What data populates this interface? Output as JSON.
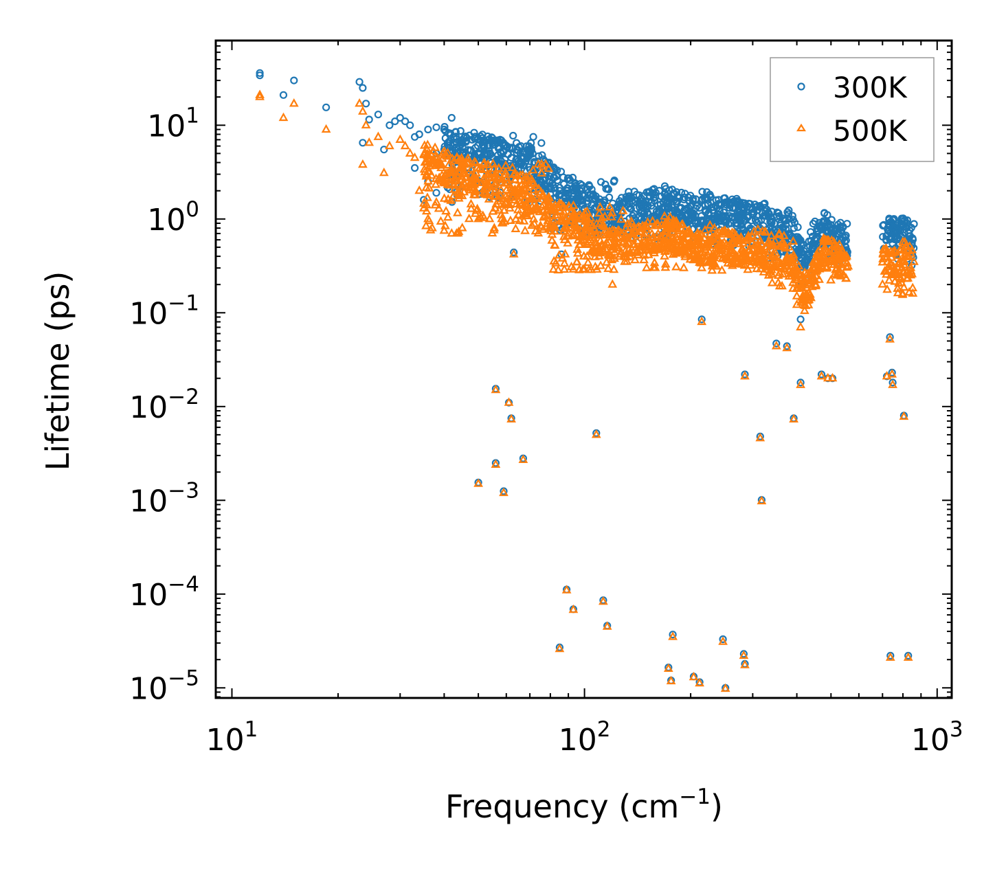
{
  "chart_data": {
    "type": "scatter",
    "title": "",
    "xlabel": "Frequency (cm",
    "xlabel_sup": "−1",
    "xlabel_suffix": ")",
    "ylabel": "Lifetime (ps)",
    "xscale": "log",
    "yscale": "log",
    "xlim": [
      9,
      1100
    ],
    "ylim": [
      7.8e-06,
      80
    ],
    "x_ticks": [
      {
        "value": 10,
        "base": "10",
        "exp": "1"
      },
      {
        "value": 100,
        "base": "10",
        "exp": "2"
      },
      {
        "value": 1000,
        "base": "10",
        "exp": "3"
      }
    ],
    "y_ticks": [
      {
        "value": 10,
        "base": "10",
        "exp": "1"
      },
      {
        "value": 1,
        "base": "10",
        "exp": "0"
      },
      {
        "value": 0.1,
        "base": "10",
        "exp": "−1"
      },
      {
        "value": 0.01,
        "base": "10",
        "exp": "−2"
      },
      {
        "value": 0.001,
        "base": "10",
        "exp": "−3"
      },
      {
        "value": 0.0001,
        "base": "10",
        "exp": "−4"
      },
      {
        "value": 1e-05,
        "base": "10",
        "exp": "−5"
      }
    ],
    "legend_position": "top-right",
    "grid": false,
    "series": [
      {
        "name": "300K",
        "marker": "circle",
        "color": "#1f77b4",
        "trend": [
          [
            12,
            36
          ],
          [
            15,
            28
          ],
          [
            20,
            18
          ],
          [
            25,
            12
          ],
          [
            30,
            9
          ],
          [
            40,
            7
          ],
          [
            50,
            5.5
          ],
          [
            60,
            4.5
          ],
          [
            70,
            4
          ],
          [
            80,
            2.5
          ],
          [
            90,
            2
          ],
          [
            100,
            1.5
          ],
          [
            110,
            1.1
          ],
          [
            130,
            1.2
          ],
          [
            150,
            1.3
          ],
          [
            170,
            1.6
          ],
          [
            200,
            1.1
          ],
          [
            250,
            1.2
          ],
          [
            300,
            1.0
          ],
          [
            350,
            0.8
          ],
          [
            380,
            0.85
          ],
          [
            420,
            0.4
          ],
          [
            480,
            0.8
          ],
          [
            540,
            0.6
          ],
          [
            720,
            0.7
          ],
          [
            800,
            0.7
          ],
          [
            850,
            0.6
          ]
        ],
        "ranges": [
          [
            40,
            80,
            1.5,
            8
          ],
          [
            80,
            130,
            0.7,
            2.6
          ],
          [
            130,
            230,
            0.6,
            2.0
          ],
          [
            230,
            330,
            0.5,
            1.6
          ],
          [
            330,
            400,
            0.35,
            1.2
          ],
          [
            400,
            440,
            0.2,
            0.6
          ],
          [
            440,
            560,
            0.35,
            0.95
          ],
          [
            700,
            860,
            0.3,
            0.9
          ]
        ],
        "points": [
          [
            12,
            36
          ],
          [
            12,
            34
          ],
          [
            14,
            21
          ],
          [
            15,
            30
          ],
          [
            18.5,
            15.5
          ],
          [
            23,
            29
          ],
          [
            23.5,
            25
          ],
          [
            24,
            17
          ],
          [
            24.5,
            11.5
          ],
          [
            23.5,
            6.5
          ],
          [
            26,
            13
          ],
          [
            27,
            5.5
          ],
          [
            28,
            10
          ],
          [
            29,
            11
          ],
          [
            30,
            12
          ],
          [
            31,
            11
          ],
          [
            32,
            10
          ],
          [
            33,
            7.5
          ],
          [
            34,
            8
          ],
          [
            36,
            9
          ],
          [
            38,
            9.5
          ],
          [
            40,
            9
          ],
          [
            42,
            12
          ],
          [
            38,
            5
          ],
          [
            40,
            5.5
          ],
          [
            33,
            3.5
          ],
          [
            36,
            2.5
          ],
          [
            35,
            1.6
          ],
          [
            38,
            1.9
          ],
          [
            45,
            5
          ],
          [
            48,
            7
          ],
          [
            52,
            6
          ],
          [
            55,
            6.5
          ],
          [
            58,
            5
          ],
          [
            62,
            4.5
          ],
          [
            66,
            6
          ],
          [
            70,
            5
          ],
          [
            75,
            2.2
          ],
          [
            80,
            2.5
          ],
          [
            85,
            2
          ],
          [
            90,
            1.8
          ],
          [
            95,
            1.5
          ],
          [
            100,
            1.3
          ],
          [
            105,
            1.1
          ],
          [
            110,
            1.0
          ],
          [
            120,
            1.1
          ],
          [
            130,
            1.5
          ],
          [
            140,
            1.3
          ],
          [
            160,
            1.2
          ],
          [
            170,
            2.1
          ],
          [
            180,
            1.6
          ],
          [
            200,
            1.0
          ],
          [
            220,
            1.4
          ],
          [
            240,
            1.6
          ],
          [
            260,
            1.5
          ],
          [
            280,
            1.3
          ],
          [
            300,
            1.1
          ],
          [
            340,
            1.2
          ],
          [
            360,
            0.9
          ],
          [
            380,
            1.0
          ],
          [
            400,
            0.45
          ],
          [
            420,
            0.35
          ],
          [
            460,
            0.75
          ],
          [
            480,
            0.95
          ],
          [
            520,
            0.5
          ],
          [
            63,
            0.44
          ],
          [
            86,
            0.42
          ],
          [
            215,
            0.085
          ],
          [
            410,
            0.085
          ],
          [
            350,
            0.047
          ],
          [
            375,
            0.044
          ],
          [
            735,
            0.055
          ],
          [
            285,
            0.022
          ],
          [
            410,
            0.018
          ],
          [
            470,
            0.022
          ],
          [
            490,
            0.02
          ],
          [
            505,
            0.02
          ],
          [
            720,
            0.021
          ],
          [
            745,
            0.023
          ],
          [
            748,
            0.018
          ],
          [
            56,
            0.0155
          ],
          [
            61,
            0.011
          ],
          [
            62,
            0.0075
          ],
          [
            392,
            0.0075
          ],
          [
            805,
            0.008
          ],
          [
            108,
            0.0052
          ],
          [
            315,
            0.0048
          ],
          [
            50,
            0.00155
          ],
          [
            56,
            0.0025
          ],
          [
            59,
            0.00125
          ],
          [
            67,
            0.0028
          ],
          [
            318,
            0.00101
          ],
          [
            85,
            2.7e-05
          ],
          [
            89,
            0.000112
          ],
          [
            93,
            6.9e-05
          ],
          [
            113,
            8.6e-05
          ],
          [
            116,
            4.6e-05
          ],
          [
            737,
            2.2e-05
          ],
          [
            828,
            2.2e-05
          ],
          [
            178,
            3.7e-05
          ],
          [
            173,
            1.65e-05
          ],
          [
            176,
            1.2e-05
          ],
          [
            204,
            1.32e-05
          ],
          [
            212,
            1.15e-05
          ],
          [
            247,
            3.3e-05
          ],
          [
            251,
            1e-05
          ],
          [
            283,
            2.3e-05
          ],
          [
            285,
            1.8e-05
          ]
        ]
      },
      {
        "name": "500K",
        "marker": "triangle",
        "color": "#ff7f0e",
        "trend": [
          [
            12,
            21
          ],
          [
            15,
            15
          ],
          [
            20,
            10
          ],
          [
            25,
            7
          ],
          [
            30,
            5.5
          ],
          [
            40,
            3.5
          ],
          [
            50,
            2.8
          ],
          [
            60,
            2.3
          ],
          [
            70,
            1.9
          ],
          [
            80,
            1.1
          ],
          [
            90,
            0.9
          ],
          [
            100,
            0.7
          ],
          [
            120,
            0.55
          ],
          [
            150,
            0.6
          ],
          [
            170,
            0.75
          ],
          [
            200,
            0.5
          ],
          [
            250,
            0.5
          ],
          [
            300,
            0.45
          ],
          [
            350,
            0.35
          ],
          [
            380,
            0.4
          ],
          [
            420,
            0.15
          ],
          [
            480,
            0.45
          ],
          [
            540,
            0.35
          ],
          [
            720,
            0.35
          ],
          [
            800,
            0.4
          ],
          [
            850,
            0.35
          ]
        ],
        "ranges": [
          [
            35,
            80,
            0.7,
            4.0
          ],
          [
            80,
            130,
            0.28,
            1.4
          ],
          [
            130,
            230,
            0.3,
            1.0
          ],
          [
            230,
            330,
            0.28,
            0.8
          ],
          [
            330,
            400,
            0.18,
            0.7
          ],
          [
            400,
            440,
            0.12,
            0.3
          ],
          [
            440,
            560,
            0.22,
            0.5
          ],
          [
            700,
            860,
            0.15,
            0.5
          ]
        ],
        "points": [
          [
            12,
            21
          ],
          [
            12,
            20
          ],
          [
            14,
            12
          ],
          [
            15,
            17
          ],
          [
            18.5,
            9
          ],
          [
            23,
            17
          ],
          [
            23.5,
            14
          ],
          [
            24,
            10
          ],
          [
            23.5,
            3.8
          ],
          [
            24.5,
            6.5
          ],
          [
            26,
            7.5
          ],
          [
            27,
            3.1
          ],
          [
            28,
            6
          ],
          [
            30,
            7
          ],
          [
            31,
            6
          ],
          [
            32,
            5
          ],
          [
            33,
            4.5
          ],
          [
            34,
            2
          ],
          [
            35,
            1.3
          ],
          [
            36,
            1.0
          ],
          [
            37,
            0.8
          ],
          [
            38,
            1.5
          ],
          [
            40,
            0.75
          ],
          [
            42,
            0.7
          ],
          [
            45,
            0.8
          ],
          [
            50,
            1.0
          ],
          [
            55,
            1.2
          ],
          [
            60,
            1.5
          ],
          [
            65,
            1.1
          ],
          [
            70,
            1.2
          ],
          [
            80,
            0.9
          ],
          [
            90,
            0.7
          ],
          [
            100,
            0.6
          ],
          [
            110,
            0.4
          ],
          [
            120,
            0.2
          ],
          [
            130,
            0.35
          ],
          [
            150,
            0.3
          ],
          [
            170,
            0.9
          ],
          [
            180,
            0.5
          ],
          [
            200,
            0.4
          ],
          [
            215,
            0.3
          ],
          [
            240,
            0.6
          ],
          [
            260,
            0.5
          ],
          [
            280,
            0.4
          ],
          [
            300,
            0.35
          ],
          [
            340,
            0.4
          ],
          [
            360,
            0.3
          ],
          [
            380,
            0.5
          ],
          [
            400,
            0.15
          ],
          [
            420,
            0.12
          ],
          [
            460,
            0.3
          ],
          [
            480,
            0.5
          ],
          [
            520,
            0.25
          ],
          [
            63,
            0.42
          ],
          [
            215,
            0.08
          ],
          [
            410,
            0.07
          ],
          [
            350,
            0.044
          ],
          [
            375,
            0.042
          ],
          [
            735,
            0.052
          ],
          [
            285,
            0.021
          ],
          [
            410,
            0.017
          ],
          [
            470,
            0.021
          ],
          [
            490,
            0.02
          ],
          [
            505,
            0.02
          ],
          [
            720,
            0.021
          ],
          [
            745,
            0.022
          ],
          [
            748,
            0.017
          ],
          [
            56,
            0.015
          ],
          [
            61,
            0.011
          ],
          [
            62,
            0.0073
          ],
          [
            392,
            0.0073
          ],
          [
            805,
            0.0078
          ],
          [
            108,
            0.005
          ],
          [
            315,
            0.0046
          ],
          [
            50,
            0.0015
          ],
          [
            56,
            0.0024
          ],
          [
            59,
            0.0012
          ],
          [
            67,
            0.0027
          ],
          [
            318,
            0.00098
          ],
          [
            85,
            2.6e-05
          ],
          [
            89,
            0.00011
          ],
          [
            93,
            6.8e-05
          ],
          [
            113,
            8.3e-05
          ],
          [
            116,
            4.5e-05
          ],
          [
            737,
            2.1e-05
          ],
          [
            828,
            2.1e-05
          ],
          [
            178,
            3.5e-05
          ],
          [
            173,
            1.6e-05
          ],
          [
            176,
            1.18e-05
          ],
          [
            204,
            1.3e-05
          ],
          [
            212,
            1.12e-05
          ],
          [
            247,
            3.1e-05
          ],
          [
            251,
            9.8e-06
          ],
          [
            283,
            2.2e-05
          ],
          [
            285,
            1.75e-05
          ]
        ]
      }
    ]
  }
}
